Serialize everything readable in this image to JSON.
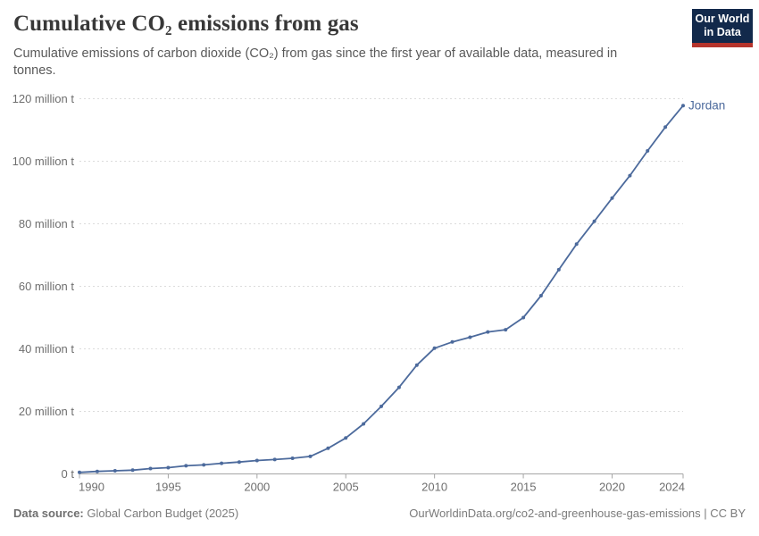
{
  "header": {
    "title": "Cumulative CO₂ emissions from gas",
    "subtitle": "Cumulative emissions of carbon dioxide (CO₂) from gas since the first year of available data, measured in tonnes.",
    "logo": {
      "line1": "Our World",
      "line2": "in Data"
    }
  },
  "footer": {
    "source_label": "Data source:",
    "source_value": " Global Carbon Budget (2025)",
    "attribution": "OurWorldinData.org/co2-and-greenhouse-gas-emissions | CC BY"
  },
  "chart_data": {
    "type": "line",
    "title": "Cumulative CO₂ emissions from gas",
    "unit": "million tonnes",
    "entity": "Jordan",
    "series": [
      {
        "name": "Jordan",
        "color": "#4c6a9c",
        "x": [
          1990,
          1991,
          1992,
          1993,
          1994,
          1995,
          1996,
          1997,
          1998,
          1999,
          2000,
          2001,
          2002,
          2003,
          2004,
          2005,
          2006,
          2007,
          2008,
          2009,
          2010,
          2011,
          2012,
          2013,
          2014,
          2015,
          2016,
          2017,
          2018,
          2019,
          2020,
          2021,
          2022,
          2023,
          2024
        ],
        "values_million_t": [
          0.5,
          0.8,
          1.0,
          1.2,
          1.7,
          2.0,
          2.6,
          2.9,
          3.4,
          3.8,
          4.3,
          4.6,
          5.0,
          5.6,
          8.2,
          11.5,
          16.0,
          21.6,
          27.7,
          34.8,
          40.2,
          42.2,
          43.7,
          45.4,
          46.1,
          50.0,
          57.0,
          65.3,
          73.5,
          80.8,
          88.2,
          95.4,
          103.3,
          110.9,
          117.8
        ]
      }
    ],
    "xlim": [
      1990,
      2024
    ],
    "ylim_million_t": [
      0,
      120
    ],
    "x_ticks": [
      1990,
      1995,
      2000,
      2005,
      2010,
      2015,
      2020,
      2024
    ],
    "y_ticks_million_t": [
      0,
      20,
      40,
      60,
      80,
      100,
      120
    ],
    "y_tick_labels": [
      "0 t",
      "20 million t",
      "40 million t",
      "60 million t",
      "80 million t",
      "100 million t",
      "120 million t"
    ],
    "grid": "horizontal-dashed",
    "legend": "line-end-label",
    "theme": {
      "line_color": "#4c6a9c",
      "tick_text_color": "#6e6e6e",
      "gridline_color": "#dcdcdc",
      "axis_line_color": "#a5a5a5",
      "end_label_color": "#4c6a9c"
    }
  }
}
